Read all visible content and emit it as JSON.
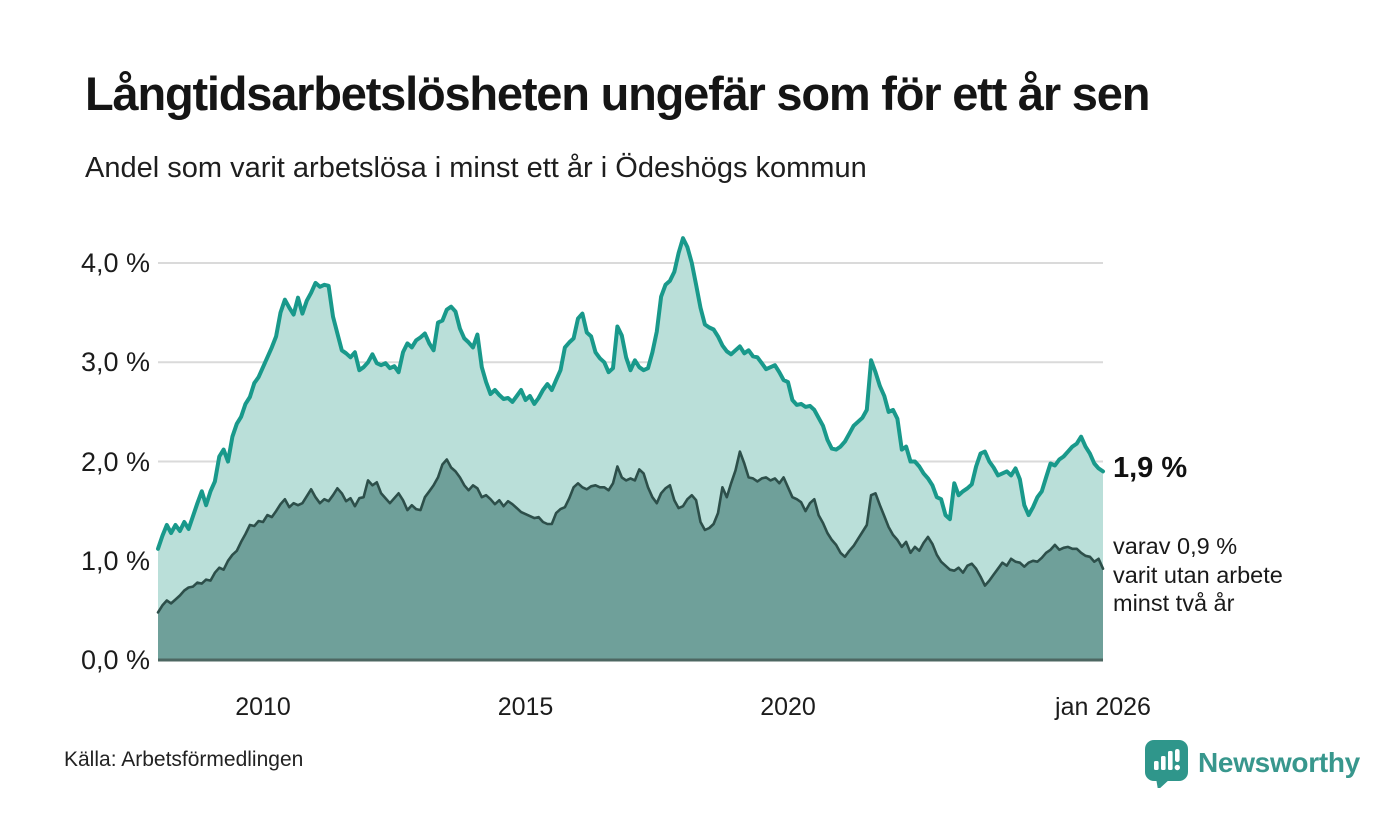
{
  "header": {
    "title": "Långtidsarbetslösheten ungefär som för ett år sen",
    "subtitle": "Andel som varit arbetslösa i minst ett år i Ödeshögs kommun"
  },
  "annotations": {
    "latest_total_label": "1,9 %",
    "sub_lines": [
      "varav 0,9 %",
      "varit utan arbete",
      "minst två år"
    ]
  },
  "footer": {
    "source": "Källa: Arbetsförmedlingen"
  },
  "branding": {
    "name": "Newsworthy"
  },
  "colors": {
    "line_total": "#19998b",
    "fill_total": "#badfd9",
    "line_two_years": "#2d4f4a",
    "fill_two_years": "#6fa09a",
    "gridline": "#dadada",
    "axis_line": "#4d6762",
    "brand_teal": "#2f968b"
  },
  "chart_data": {
    "type": "area",
    "x_start": "2008-01",
    "x_end": "2026-01",
    "x_interval": "monthly",
    "ylim": [
      0,
      4.0
    ],
    "grid": true,
    "legend_position": "none",
    "ylabel": "",
    "xlabel": "",
    "y_ticks": [
      {
        "label": "0,0 %",
        "value": 0
      },
      {
        "label": "1,0 %",
        "value": 1
      },
      {
        "label": "2,0 %",
        "value": 2
      },
      {
        "label": "3,0 %",
        "value": 3
      },
      {
        "label": "4,0 %",
        "value": 4
      }
    ],
    "x_ticks": [
      {
        "label": "2010",
        "month_index": 24
      },
      {
        "label": "2015",
        "month_index": 84
      },
      {
        "label": "2020",
        "month_index": 144
      },
      {
        "label": "jan 2026",
        "month_index": 216
      }
    ],
    "latest_values": {
      "total_percent": 1.9,
      "two_years_percent": 0.9
    },
    "series": [
      {
        "name": "Arbetslösa minst ett år",
        "values": [
          1.12,
          1.25,
          1.36,
          1.28,
          1.36,
          1.3,
          1.39,
          1.32,
          1.45,
          1.58,
          1.7,
          1.56,
          1.7,
          1.8,
          2.05,
          2.12,
          2.0,
          2.25,
          2.38,
          2.45,
          2.58,
          2.65,
          2.79,
          2.85,
          2.95,
          3.05,
          3.15,
          3.26,
          3.5,
          3.63,
          3.55,
          3.48,
          3.65,
          3.49,
          3.62,
          3.7,
          3.8,
          3.76,
          3.78,
          3.77,
          3.46,
          3.29,
          3.12,
          3.09,
          3.05,
          3.1,
          2.92,
          2.95,
          3.0,
          3.08,
          2.99,
          2.97,
          2.99,
          2.94,
          2.96,
          2.9,
          3.1,
          3.19,
          3.15,
          3.22,
          3.25,
          3.29,
          3.19,
          3.12,
          3.4,
          3.42,
          3.53,
          3.56,
          3.51,
          3.34,
          3.24,
          3.2,
          3.15,
          3.28,
          2.95,
          2.8,
          2.68,
          2.72,
          2.67,
          2.63,
          2.64,
          2.6,
          2.66,
          2.72,
          2.62,
          2.66,
          2.58,
          2.64,
          2.72,
          2.78,
          2.72,
          2.82,
          2.92,
          3.15,
          3.2,
          3.24,
          3.44,
          3.49,
          3.3,
          3.26,
          3.1,
          3.04,
          3.0,
          2.9,
          2.94,
          3.36,
          3.27,
          3.05,
          2.92,
          3.02,
          2.95,
          2.92,
          2.94,
          3.1,
          3.31,
          3.66,
          3.78,
          3.82,
          3.91,
          4.1,
          4.25,
          4.16,
          4.0,
          3.78,
          3.55,
          3.38,
          3.35,
          3.33,
          3.26,
          3.17,
          3.11,
          3.08,
          3.12,
          3.16,
          3.09,
          3.12,
          3.06,
          3.05,
          2.99,
          2.93,
          2.95,
          2.97,
          2.9,
          2.82,
          2.8,
          2.62,
          2.57,
          2.58,
          2.55,
          2.56,
          2.52,
          2.44,
          2.36,
          2.22,
          2.13,
          2.12,
          2.15,
          2.2,
          2.28,
          2.36,
          2.4,
          2.44,
          2.52,
          3.02,
          2.9,
          2.76,
          2.66,
          2.5,
          2.52,
          2.43,
          2.12,
          2.15,
          2.0,
          2.0,
          1.95,
          1.88,
          1.83,
          1.76,
          1.64,
          1.62,
          1.46,
          1.42,
          1.78,
          1.66,
          1.7,
          1.73,
          1.77,
          1.95,
          2.08,
          2.1,
          2.0,
          1.94,
          1.86,
          1.88,
          1.9,
          1.86,
          1.93,
          1.82,
          1.56,
          1.46,
          1.54,
          1.64,
          1.7,
          1.84,
          1.98,
          1.96,
          2.02,
          2.05,
          2.1,
          2.15,
          2.18,
          2.25,
          2.15,
          2.08,
          1.98,
          1.93,
          1.9
        ]
      },
      {
        "name": "varav utan arbete minst två år",
        "values": [
          0.48,
          0.55,
          0.6,
          0.57,
          0.61,
          0.65,
          0.7,
          0.73,
          0.74,
          0.78,
          0.77,
          0.81,
          0.8,
          0.88,
          0.93,
          0.91,
          1.0,
          1.06,
          1.1,
          1.19,
          1.27,
          1.36,
          1.35,
          1.4,
          1.39,
          1.46,
          1.44,
          1.5,
          1.57,
          1.62,
          1.54,
          1.58,
          1.56,
          1.58,
          1.65,
          1.72,
          1.64,
          1.58,
          1.62,
          1.6,
          1.66,
          1.73,
          1.68,
          1.6,
          1.63,
          1.55,
          1.63,
          1.64,
          1.81,
          1.76,
          1.79,
          1.68,
          1.63,
          1.58,
          1.63,
          1.68,
          1.61,
          1.51,
          1.56,
          1.52,
          1.51,
          1.64,
          1.7,
          1.76,
          1.84,
          1.97,
          2.02,
          1.94,
          1.9,
          1.84,
          1.76,
          1.71,
          1.76,
          1.73,
          1.64,
          1.66,
          1.62,
          1.57,
          1.61,
          1.55,
          1.6,
          1.57,
          1.53,
          1.49,
          1.47,
          1.45,
          1.43,
          1.44,
          1.39,
          1.37,
          1.37,
          1.48,
          1.52,
          1.54,
          1.63,
          1.74,
          1.78,
          1.74,
          1.72,
          1.75,
          1.76,
          1.74,
          1.74,
          1.71,
          1.78,
          1.95,
          1.84,
          1.81,
          1.83,
          1.81,
          1.92,
          1.88,
          1.74,
          1.64,
          1.58,
          1.68,
          1.73,
          1.76,
          1.61,
          1.53,
          1.55,
          1.62,
          1.66,
          1.61,
          1.39,
          1.31,
          1.33,
          1.37,
          1.48,
          1.74,
          1.64,
          1.78,
          1.91,
          2.1,
          1.98,
          1.84,
          1.83,
          1.8,
          1.83,
          1.84,
          1.81,
          1.83,
          1.78,
          1.84,
          1.74,
          1.64,
          1.62,
          1.59,
          1.5,
          1.58,
          1.62,
          1.46,
          1.38,
          1.28,
          1.21,
          1.16,
          1.08,
          1.04,
          1.1,
          1.15,
          1.22,
          1.29,
          1.36,
          1.66,
          1.68,
          1.56,
          1.45,
          1.34,
          1.26,
          1.21,
          1.14,
          1.19,
          1.08,
          1.14,
          1.1,
          1.18,
          1.24,
          1.17,
          1.06,
          0.99,
          0.95,
          0.91,
          0.9,
          0.93,
          0.88,
          0.95,
          0.97,
          0.92,
          0.84,
          0.75,
          0.8,
          0.86,
          0.92,
          0.98,
          0.95,
          1.02,
          0.99,
          0.98,
          0.94,
          0.98,
          1.0,
          0.99,
          1.03,
          1.08,
          1.11,
          1.16,
          1.11,
          1.13,
          1.14,
          1.12,
          1.12,
          1.08,
          1.05,
          1.04,
          0.99,
          1.02,
          0.92
        ]
      }
    ]
  }
}
